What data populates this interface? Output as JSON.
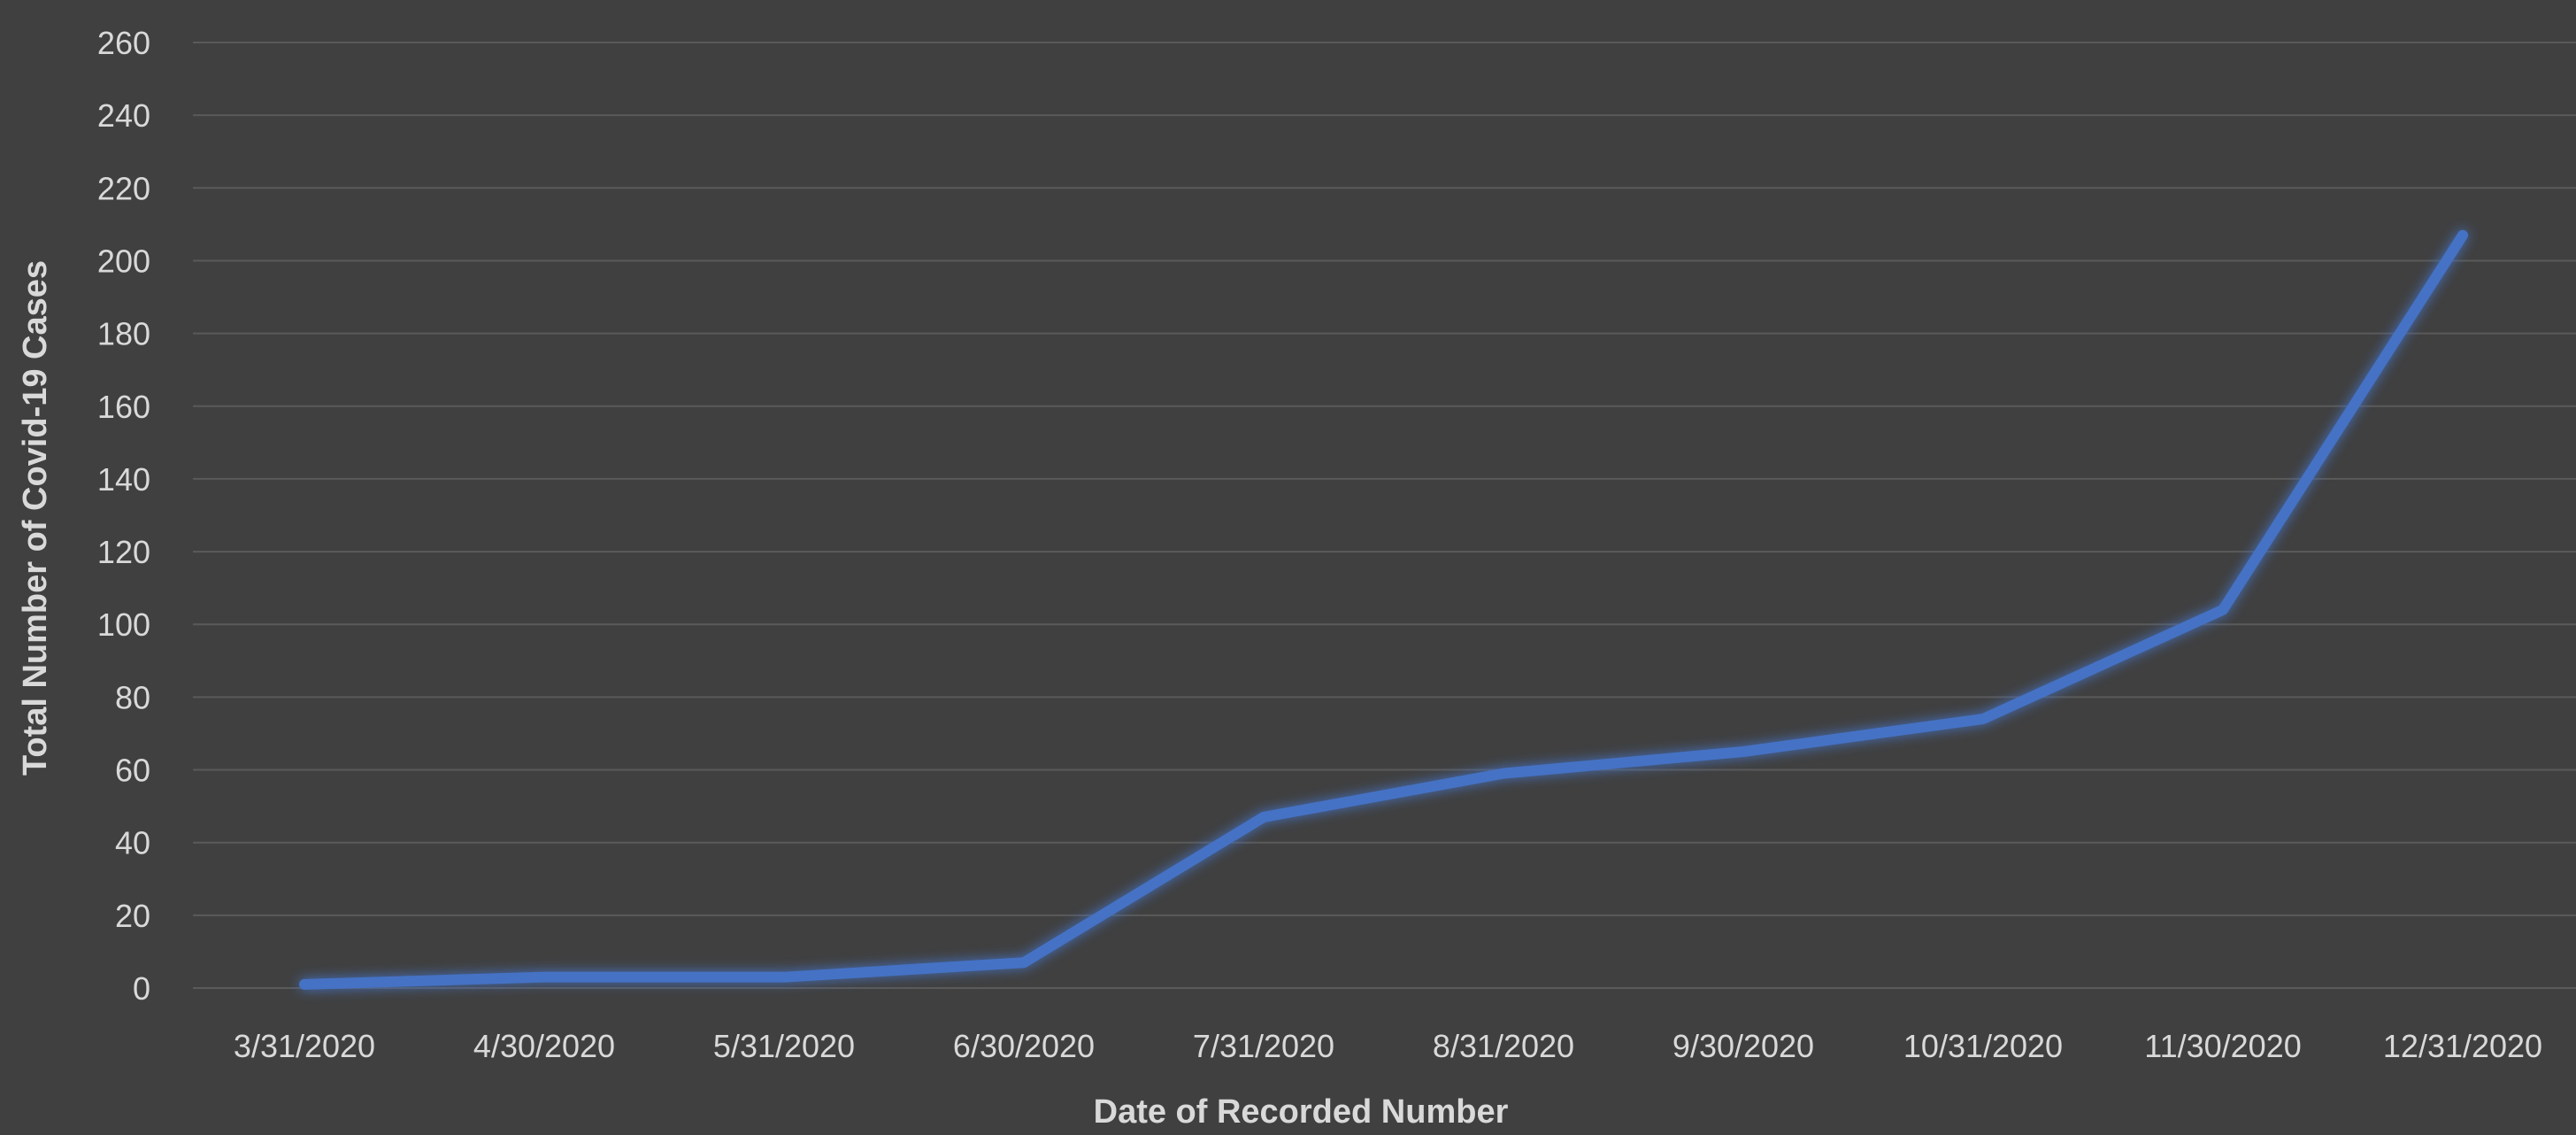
{
  "chart_data": {
    "type": "line",
    "title": "",
    "xlabel": "Date of Recorded Number",
    "ylabel": "Total Number of Covid-19 Cases",
    "categories": [
      "3/31/2020",
      "4/30/2020",
      "5/31/2020",
      "6/30/2020",
      "7/31/2020",
      "8/31/2020",
      "9/30/2020",
      "10/31/2020",
      "11/30/2020",
      "12/31/2020"
    ],
    "series": [
      {
        "values": [
          1,
          3,
          3,
          7,
          47,
          59,
          65,
          74,
          104,
          207
        ]
      }
    ],
    "ylim": [
      0,
      260
    ],
    "yticks": [
      0,
      20,
      40,
      60,
      80,
      100,
      120,
      140,
      160,
      180,
      200,
      220,
      240,
      260
    ],
    "grid": true,
    "legend": "none",
    "colors": {
      "background": "#404040",
      "line": "#4472c4",
      "grid": "#5a5a5a",
      "text": "#d9d9d9"
    }
  }
}
